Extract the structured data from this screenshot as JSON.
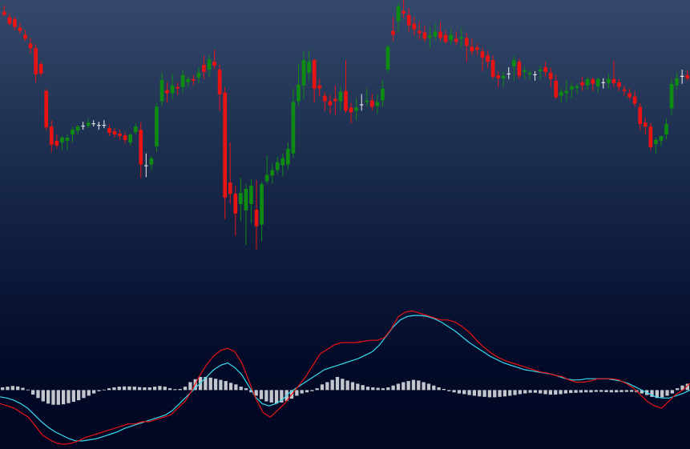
{
  "chart_data": [
    {
      "type": "candlestick",
      "panel": "price",
      "title": "",
      "xlabel": "",
      "ylabel": "",
      "grid": false,
      "legend": "none",
      "ylim": [
        0,
        340
      ],
      "colors": {
        "up": "#0f8a12",
        "down": "#e81414",
        "doji": "#f2f2f2"
      },
      "candles": [
        [
          325,
          333,
          320,
          321
        ],
        [
          318,
          323,
          308,
          310
        ],
        [
          316,
          319,
          302,
          306
        ],
        [
          305,
          311,
          297,
          301
        ],
        [
          296,
          302,
          288,
          291
        ],
        [
          285,
          292,
          272,
          279
        ],
        [
          279,
          284,
          236,
          246
        ],
        [
          259,
          262,
          244,
          247
        ],
        [
          225,
          228,
          175,
          179
        ],
        [
          180,
          188,
          148,
          157
        ],
        [
          162,
          170,
          152,
          156
        ],
        [
          160,
          168,
          150,
          166
        ],
        [
          162,
          170,
          150,
          166
        ],
        [
          170,
          180,
          160,
          176
        ],
        [
          175,
          182,
          170,
          180
        ],
        [
          181,
          186,
          176,
          181
        ],
        [
          181,
          190,
          178,
          185
        ],
        [
          184,
          188,
          180,
          184
        ],
        [
          181,
          186,
          176,
          182
        ],
        [
          182,
          188,
          178,
          182
        ],
        [
          178,
          183,
          168,
          172
        ],
        [
          174,
          178,
          166,
          170
        ],
        [
          171,
          176,
          163,
          168
        ],
        [
          169,
          173,
          159,
          163
        ],
        [
          160,
          172,
          156,
          170
        ],
        [
          173,
          184,
          170,
          180
        ],
        [
          176,
          185,
          115,
          132
        ],
        [
          131,
          146,
          116,
          130
        ],
        [
          132,
          143,
          125,
          140
        ],
        [
          155,
          210,
          148,
          205
        ],
        [
          212,
          248,
          206,
          239
        ],
        [
          226,
          236,
          210,
          222
        ],
        [
          222,
          246,
          214,
          232
        ],
        [
          230,
          236,
          220,
          228
        ],
        [
          230,
          251,
          222,
          245
        ],
        [
          236,
          244,
          230,
          240
        ],
        [
          240,
          245,
          232,
          238
        ],
        [
          242,
          255,
          235,
          248
        ],
        [
          258,
          270,
          240,
          249
        ],
        [
          252,
          270,
          242,
          265
        ],
        [
          262,
          277,
          252,
          257
        ],
        [
          252,
          258,
          200,
          221
        ],
        [
          223,
          230,
          63,
          90
        ],
        [
          109,
          160,
          82,
          95
        ],
        [
          95,
          105,
          42,
          70
        ],
        [
          82,
          115,
          60,
          96
        ],
        [
          74,
          107,
          30,
          101
        ],
        [
          82,
          113,
          58,
          105
        ],
        [
          75,
          112,
          25,
          54
        ],
        [
          56,
          110,
          35,
          107
        ],
        [
          111,
          144,
          108,
          119
        ],
        [
          118,
          133,
          108,
          125
        ],
        [
          125,
          142,
          120,
          135
        ],
        [
          131,
          146,
          117,
          140
        ],
        [
          132,
          160,
          126,
          152
        ],
        [
          146,
          228,
          140,
          211
        ],
        [
          212,
          260,
          206,
          233
        ],
        [
          232,
          275,
          214,
          264
        ],
        [
          248,
          276,
          238,
          262
        ],
        [
          264,
          266,
          210,
          228
        ],
        [
          232,
          240,
          218,
          228
        ],
        [
          219,
          224,
          200,
          212
        ],
        [
          212,
          220,
          196,
          207
        ],
        [
          215,
          232,
          195,
          212
        ],
        [
          212,
          230,
          200,
          224
        ],
        [
          225,
          264,
          197,
          200
        ],
        [
          204,
          210,
          184,
          198
        ],
        [
          200,
          216,
          188,
          204
        ],
        [
          208,
          221,
          200,
          208
        ],
        [
          211,
          228,
          206,
          213
        ],
        [
          213,
          221,
          200,
          205
        ],
        [
          206,
          221,
          196,
          211
        ],
        [
          213,
          239,
          205,
          228
        ],
        [
          252,
          283,
          248,
          281
        ],
        [
          301,
          318,
          288,
          296
        ],
        [
          313,
          336,
          300,
          332
        ],
        [
          326,
          341,
          317,
          323
        ],
        [
          321,
          330,
          300,
          308
        ],
        [
          310,
          319,
          295,
          303
        ],
        [
          301,
          313,
          290,
          298
        ],
        [
          299,
          308,
          287,
          291
        ],
        [
          292,
          306,
          280,
          295
        ],
        [
          294,
          310,
          290,
          300
        ],
        [
          300,
          312,
          288,
          292
        ],
        [
          296,
          302,
          285,
          287
        ],
        [
          289,
          303,
          284,
          296
        ],
        [
          291,
          300,
          283,
          287
        ],
        [
          291,
          304,
          280,
          293
        ],
        [
          292,
          298,
          262,
          282
        ],
        [
          281,
          291,
          270,
          275
        ],
        [
          280,
          285,
          270,
          277
        ],
        [
          275,
          280,
          250,
          267
        ],
        [
          270,
          276,
          254,
          262
        ],
        [
          264,
          270,
          240,
          243
        ],
        [
          245,
          250,
          230,
          241
        ],
        [
          241,
          249,
          230,
          244
        ],
        [
          247,
          255,
          240,
          247
        ],
        [
          256,
          269,
          238,
          264
        ],
        [
          262,
          266,
          240,
          244
        ],
        [
          249,
          256,
          240,
          251
        ],
        [
          246,
          252,
          240,
          248
        ],
        [
          246,
          250,
          238,
          245
        ],
        [
          250,
          257,
          240,
          252
        ],
        [
          255,
          262,
          243,
          249
        ],
        [
          248,
          254,
          230,
          240
        ],
        [
          238,
          246,
          215,
          217
        ],
        [
          219,
          228,
          210,
          224
        ],
        [
          222,
          238,
          212,
          225
        ],
        [
          227,
          236,
          216,
          231
        ],
        [
          229,
          234,
          221,
          231
        ],
        [
          236,
          243,
          225,
          232
        ],
        [
          232,
          243,
          226,
          240
        ],
        [
          240,
          242,
          225,
          234
        ],
        [
          231,
          242,
          222,
          240
        ],
        [
          236,
          241,
          228,
          236
        ],
        [
          235,
          247,
          228,
          240
        ],
        [
          240,
          263,
          230,
          235
        ],
        [
          236,
          240,
          225,
          230
        ],
        [
          227,
          232,
          219,
          225
        ],
        [
          222,
          228,
          214,
          217
        ],
        [
          218,
          225,
          205,
          209
        ],
        [
          205,
          210,
          175,
          183
        ],
        [
          185,
          192,
          170,
          180
        ],
        [
          180,
          185,
          150,
          154
        ],
        [
          158,
          166,
          145,
          163
        ],
        [
          162,
          168,
          155,
          168
        ],
        [
          170,
          190,
          164,
          183
        ],
        [
          203,
          240,
          195,
          234
        ],
        [
          232,
          248,
          226,
          241
        ],
        [
          244,
          252,
          234,
          244
        ],
        [
          245,
          251,
          238,
          241
        ]
      ]
    },
    {
      "type": "macd",
      "panel": "indicator",
      "title": "",
      "xlabel": "",
      "ylabel": "",
      "grid": false,
      "legend": "none",
      "ylim": [
        -25,
        38
      ],
      "colors": {
        "histogram": "#c3c6cc",
        "main": "#e81414",
        "signal": "#3ad9ee"
      },
      "histogram": [
        1.2,
        1.5,
        1.8,
        1.6,
        1.0,
        0.2,
        -2.0,
        -3.5,
        -5.0,
        -6.0,
        -6.5,
        -6.5,
        -6.3,
        -5.8,
        -5.2,
        -4.5,
        -3.5,
        -2.5,
        -1.5,
        -0.5,
        0.2,
        0.8,
        1.2,
        1.5,
        1.6,
        1.6,
        1.5,
        1.3,
        1.2,
        1.2,
        1.5,
        1.8,
        1.5,
        0.8,
        0.4,
        0.5,
        1.5,
        3.5,
        4.8,
        5.8,
        5.8,
        5.5,
        5.0,
        4.5,
        4.0,
        3.2,
        2.5,
        1.5,
        0.8,
        -1.0,
        -2.5,
        -4.0,
        -5.0,
        -5.5,
        -6.0,
        -5.5,
        -4.8,
        -3.8,
        -2.5,
        -1.5,
        -1.0,
        -0.5,
        0.8,
        2.5,
        3.5,
        4.5,
        5.8,
        5.0,
        4.2,
        3.5,
        2.8,
        2.2,
        1.5,
        1.2,
        1.0,
        0.8,
        1.2,
        2.0,
        2.8,
        3.5,
        4.0,
        4.5,
        4.2,
        3.5,
        2.8,
        2.0,
        1.2,
        0.5,
        -0.5,
        -1.0,
        -1.5,
        -1.8,
        -2.2,
        -2.5,
        -2.8,
        -3.0,
        -3.2,
        -3.2,
        -3.0,
        -2.8,
        -2.5,
        -2.2,
        -1.8,
        -1.5,
        -1.2,
        -1.2,
        -1.5,
        -1.8,
        -2.0,
        -2.0,
        -1.8,
        -1.5,
        -1.3,
        -1.2,
        -1.1,
        -1.0,
        -1.0,
        -0.8,
        -0.8,
        -0.9,
        -1.0,
        -1.0,
        -0.9,
        -0.8,
        -0.8,
        -1.0,
        -1.5,
        -2.2,
        -3.0,
        -3.5,
        -3.2,
        -2.5,
        -1.5,
        0.8,
        2.0,
        2.8
      ],
      "series": [
        {
          "values": [
            -6,
            -7,
            -8,
            -10,
            -12,
            -16,
            -20,
            -22,
            -23.5,
            -24,
            -23.5,
            -22.5,
            -21,
            -20,
            -19,
            -18,
            -17,
            -16,
            -15,
            -15,
            -14,
            -14,
            -13,
            -12,
            -11,
            -8,
            -5,
            0,
            6,
            11,
            15,
            17.5,
            18.5,
            17,
            12,
            4,
            -4,
            -10,
            -12,
            -9,
            -6,
            -2,
            2,
            6,
            11,
            16,
            18,
            20,
            21,
            21,
            21,
            21.5,
            22,
            22,
            23,
            27,
            32.5,
            34.5,
            35,
            34,
            33,
            32,
            31,
            31,
            30,
            28,
            25.5,
            22,
            19,
            16.5,
            14.5,
            13,
            12,
            11,
            10,
            9,
            8,
            7.5,
            6.5,
            6,
            4.5,
            3.5,
            3.5,
            4,
            5,
            5,
            5,
            4.5,
            3,
            1,
            -2,
            -5,
            -7,
            -8,
            -5,
            -2,
            0,
            3
          ]
        },
        {
          "values": [
            -3,
            -3.5,
            -4.5,
            -6,
            -8,
            -11,
            -14,
            -16.5,
            -18.5,
            -20,
            -21.5,
            -22.5,
            -22.5,
            -22,
            -21.5,
            -20.5,
            -19.5,
            -18.5,
            -17,
            -16,
            -15,
            -14,
            -13,
            -12,
            -11,
            -9,
            -6,
            -3,
            0,
            3,
            6,
            9,
            11,
            12,
            10,
            7,
            2,
            -3,
            -6,
            -7,
            -6,
            -4,
            -1,
            1,
            3,
            5,
            7,
            9,
            10,
            11,
            12,
            13,
            14,
            15.5,
            17,
            20,
            24,
            28,
            31,
            32.5,
            33,
            33,
            32.5,
            31.5,
            30,
            28,
            26,
            23.5,
            21,
            19,
            17,
            15,
            13.5,
            12,
            11,
            10,
            9,
            8.5,
            8,
            7.5,
            7,
            6,
            5,
            4.5,
            4.5,
            5,
            5,
            5,
            5,
            4.5,
            4,
            3,
            1.5,
            0,
            -1.5,
            -3,
            -3.5,
            -3.5,
            -2.5,
            -1.5,
            0
          ]
        }
      ]
    }
  ]
}
